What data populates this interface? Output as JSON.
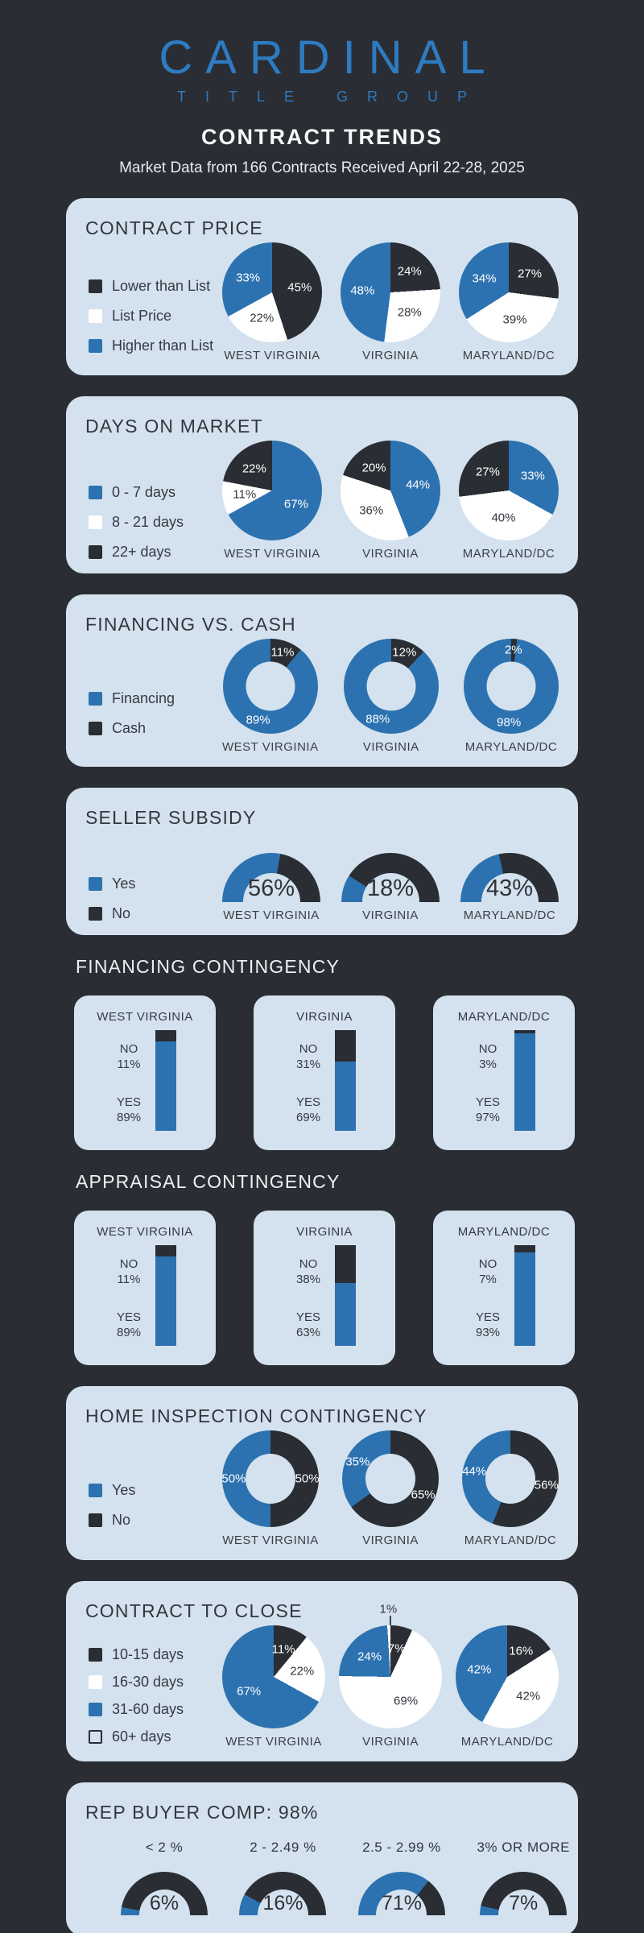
{
  "meta": {
    "colors": {
      "background": "#2a2d33",
      "panel": "#d3e2ee",
      "blue": "#2d72b0",
      "dark": "#2a2d33",
      "white": "#ffffff",
      "logo_blue": "#2e7bc1",
      "heading_on_dark": "#eef0f3",
      "text_dark": "#33373d"
    }
  },
  "header": {
    "logo_primary": "CARDINAL",
    "logo_secondary": "TITLE GROUP",
    "title": "CONTRACT TRENDS",
    "subtitle": "Market Data from 166 Contracts Received April 22-28, 2025"
  },
  "chart_data": [
    {
      "id": "contract-price",
      "type": "pie",
      "title": "CONTRACT PRICE",
      "legend": [
        {
          "label": "Lower than List",
          "color": "dark"
        },
        {
          "label": "List Price",
          "color": "white"
        },
        {
          "label": "Higher than List",
          "color": "blue"
        }
      ],
      "charts": [
        {
          "label": "WEST VIRGINIA",
          "slices": [
            {
              "name": "Lower than List",
              "color": "dark",
              "value": 45
            },
            {
              "name": "List Price",
              "color": "white",
              "value": 22
            },
            {
              "name": "Higher than List",
              "color": "blue",
              "value": 33
            }
          ]
        },
        {
          "label": "VIRGINIA",
          "slices": [
            {
              "name": "Lower than List",
              "color": "dark",
              "value": 24
            },
            {
              "name": "List Price",
              "color": "white",
              "value": 28
            },
            {
              "name": "Higher than List",
              "color": "blue",
              "value": 48
            }
          ]
        },
        {
          "label": "MARYLAND/DC",
          "slices": [
            {
              "name": "Lower than List",
              "color": "dark",
              "value": 27
            },
            {
              "name": "List Price",
              "color": "white",
              "value": 39
            },
            {
              "name": "Higher than List",
              "color": "blue",
              "value": 34
            }
          ]
        }
      ]
    },
    {
      "id": "days-on-market",
      "type": "pie",
      "title": "DAYS ON MARKET",
      "legend": [
        {
          "label": "0 - 7 days",
          "color": "blue"
        },
        {
          "label": "8 - 21 days",
          "color": "white"
        },
        {
          "label": "22+ days",
          "color": "dark"
        }
      ],
      "charts": [
        {
          "label": "WEST VIRGINIA",
          "slices": [
            {
              "name": "0 - 7 days",
              "color": "blue",
              "value": 67
            },
            {
              "name": "8 - 21 days",
              "color": "white",
              "value": 11
            },
            {
              "name": "22+ days",
              "color": "dark",
              "value": 22
            }
          ]
        },
        {
          "label": "VIRGINIA",
          "slices": [
            {
              "name": "0 - 7 days",
              "color": "blue",
              "value": 44
            },
            {
              "name": "8 - 21 days",
              "color": "white",
              "value": 36
            },
            {
              "name": "22+ days",
              "color": "dark",
              "value": 20
            }
          ]
        },
        {
          "label": "MARYLAND/DC",
          "slices": [
            {
              "name": "0 - 7 days",
              "color": "blue",
              "value": 33
            },
            {
              "name": "8 - 21 days",
              "color": "white",
              "value": 40
            },
            {
              "name": "22+ days",
              "color": "dark",
              "value": 27
            }
          ]
        }
      ]
    },
    {
      "id": "financing-vs-cash",
      "type": "donut",
      "title": "FINANCING VS. CASH",
      "legend": [
        {
          "label": "Financing",
          "color": "blue"
        },
        {
          "label": "Cash",
          "color": "dark"
        }
      ],
      "charts": [
        {
          "label": "WEST VIRGINIA",
          "slices": [
            {
              "name": "Cash",
              "color": "dark",
              "value": 11
            },
            {
              "name": "Financing",
              "color": "blue",
              "value": 89
            }
          ]
        },
        {
          "label": "VIRGINIA",
          "slices": [
            {
              "name": "Cash",
              "color": "dark",
              "value": 12
            },
            {
              "name": "Financing",
              "color": "blue",
              "value": 88
            }
          ]
        },
        {
          "label": "MARYLAND/DC",
          "slices": [
            {
              "name": "Cash",
              "color": "dark",
              "value": 2
            },
            {
              "name": "Financing",
              "color": "blue",
              "value": 98
            }
          ]
        }
      ]
    },
    {
      "id": "seller-subsidy",
      "type": "gauge",
      "title": "SELLER SUBSIDY",
      "legend": [
        {
          "label": "Yes",
          "color": "blue"
        },
        {
          "label": "No",
          "color": "dark"
        }
      ],
      "charts": [
        {
          "label": "WEST VIRGINIA",
          "value": 56
        },
        {
          "label": "VIRGINIA",
          "value": 18
        },
        {
          "label": "MARYLAND/DC",
          "value": 43
        }
      ]
    },
    {
      "id": "financing-contingency",
      "type": "bars",
      "title": "FINANCING CONTINGENCY",
      "no_label": "NO",
      "yes_label": "YES",
      "charts": [
        {
          "label": "WEST VIRGINIA",
          "no": 11,
          "yes": 89
        },
        {
          "label": "VIRGINIA",
          "no": 31,
          "yes": 69
        },
        {
          "label": "MARYLAND/DC",
          "no": 3,
          "yes": 97
        }
      ]
    },
    {
      "id": "appraisal-contingency",
      "type": "bars",
      "title": "APPRAISAL CONTINGENCY",
      "no_label": "NO",
      "yes_label": "YES",
      "charts": [
        {
          "label": "WEST VIRGINIA",
          "no": 11,
          "yes": 89
        },
        {
          "label": "VIRGINIA",
          "no": 38,
          "yes": 63
        },
        {
          "label": "MARYLAND/DC",
          "no": 7,
          "yes": 93
        }
      ]
    },
    {
      "id": "home-inspection",
      "type": "donut",
      "title": "HOME INSPECTION CONTINGENCY",
      "legend": [
        {
          "label": "Yes",
          "color": "blue"
        },
        {
          "label": "No",
          "color": "dark"
        }
      ],
      "charts": [
        {
          "label": "WEST VIRGINIA",
          "slices": [
            {
              "name": "No",
              "color": "dark",
              "value": 50
            },
            {
              "name": "Yes",
              "color": "blue",
              "value": 50
            }
          ]
        },
        {
          "label": "VIRGINIA",
          "slices": [
            {
              "name": "No",
              "color": "dark",
              "value": 65
            },
            {
              "name": "Yes",
              "color": "blue",
              "value": 35
            }
          ]
        },
        {
          "label": "MARYLAND/DC",
          "slices": [
            {
              "name": "No",
              "color": "dark",
              "value": 56
            },
            {
              "name": "Yes",
              "color": "blue",
              "value": 44
            }
          ]
        }
      ]
    },
    {
      "id": "contract-to-close",
      "type": "pie",
      "title": "CONTRACT TO CLOSE",
      "legend": [
        {
          "label": "10-15 days",
          "color": "dark"
        },
        {
          "label": "16-30 days",
          "color": "white"
        },
        {
          "label": "31-60 days",
          "color": "blue"
        },
        {
          "label": "60+ days",
          "color": "outline"
        }
      ],
      "charts": [
        {
          "label": "WEST VIRGINIA",
          "slices": [
            {
              "name": "10-15 days",
              "color": "dark",
              "value": 11
            },
            {
              "name": "16-30 days",
              "color": "white",
              "value": 22
            },
            {
              "name": "31-60 days",
              "color": "blue",
              "value": 67
            },
            {
              "name": "60+ days",
              "color": "white",
              "value": 0
            }
          ]
        },
        {
          "label": "VIRGINIA",
          "slices": [
            {
              "name": "10-15 days",
              "color": "dark",
              "value": 7
            },
            {
              "name": "16-30 days",
              "color": "white",
              "value": 69
            },
            {
              "name": "31-60 days",
              "color": "blue",
              "value": 24
            },
            {
              "name": "60+ days",
              "color": "white",
              "value": 1
            }
          ]
        },
        {
          "label": "MARYLAND/DC",
          "slices": [
            {
              "name": "10-15 days",
              "color": "dark",
              "value": 16
            },
            {
              "name": "16-30 days",
              "color": "white",
              "value": 42
            },
            {
              "name": "31-60 days",
              "color": "blue",
              "value": 42
            },
            {
              "name": "60+ days",
              "color": "white",
              "value": 0
            }
          ]
        }
      ]
    },
    {
      "id": "rep-buyer-comp",
      "type": "gauge-row",
      "title": "REP BUYER COMP: 98%",
      "charts": [
        {
          "label": "< 2 %",
          "value": 6
        },
        {
          "label": "2 - 2.49 %",
          "value": 16
        },
        {
          "label": "2.5 - 2.99 %",
          "value": 71
        },
        {
          "label": "3% OR MORE",
          "value": 7
        }
      ]
    }
  ]
}
